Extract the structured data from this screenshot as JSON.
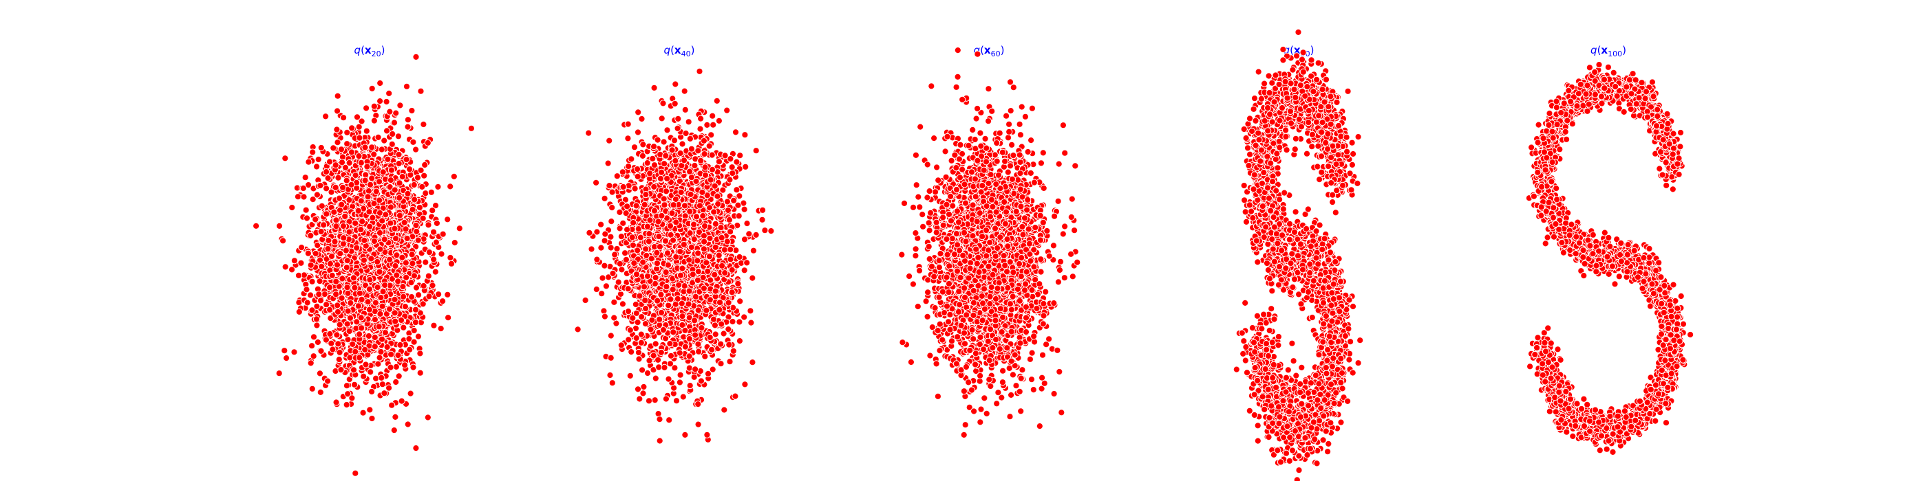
{
  "figure": {
    "colors": {
      "point_fill": "#ff0000",
      "point_edge": "#ffffff",
      "title": "#0000ff",
      "background": "#ffffff"
    }
  },
  "chart_data": [
    {
      "type": "scatter",
      "title": "q(x20)",
      "title_parts": {
        "func": "q",
        "var": "x",
        "sub": "20"
      },
      "axis": "off",
      "grid": false,
      "xlim": [
        -1.8,
        1.8
      ],
      "ylim": [
        -1.75,
        1.85
      ],
      "shape": "gaussian",
      "series": [
        {
          "x_std": 0.42,
          "y_std": 0.55,
          "x_mean": 0.0,
          "y_mean": 0.05,
          "n": 3000
        }
      ]
    },
    {
      "type": "scatter",
      "title": "q(x40)",
      "title_parts": {
        "func": "q",
        "var": "x",
        "sub": "40"
      },
      "axis": "off",
      "grid": false,
      "xlim": [
        -1.8,
        1.8
      ],
      "ylim": [
        -1.75,
        1.85
      ],
      "shape": "gaussian",
      "series": [
        {
          "x_std": 0.42,
          "y_std": 0.52,
          "x_mean": 0.0,
          "y_mean": 0.08,
          "n": 3000
        }
      ]
    },
    {
      "type": "scatter",
      "title": "q(x60)",
      "title_parts": {
        "func": "q",
        "var": "x",
        "sub": "60"
      },
      "axis": "off",
      "grid": false,
      "xlim": [
        -1.8,
        1.8
      ],
      "ylim": [
        -1.75,
        1.85
      ],
      "shape": "gaussian",
      "series": [
        {
          "x_std": 0.4,
          "y_std": 0.52,
          "x_mean": 0.0,
          "y_mean": 0.0,
          "n": 3000
        }
      ]
    },
    {
      "type": "scatter",
      "title": "q(x80)",
      "title_parts": {
        "func": "q",
        "var": "x",
        "sub": "80"
      },
      "axis": "off",
      "grid": false,
      "xlim": [
        -1.8,
        1.8
      ],
      "ylim": [
        -1.75,
        1.85
      ],
      "shape": "swiss-roll-blurred",
      "series": [
        {
          "noise": 0.2,
          "n": 3000
        }
      ]
    },
    {
      "type": "scatter",
      "title": "q(x100)",
      "title_parts": {
        "func": "q",
        "var": "x",
        "sub": "100"
      },
      "axis": "off",
      "grid": false,
      "xlim": [
        -1.8,
        1.8
      ],
      "ylim": [
        -1.75,
        1.85
      ],
      "shape": "s-curve",
      "series": [
        {
          "noise": 0.08,
          "n": 3000
        }
      ]
    }
  ]
}
